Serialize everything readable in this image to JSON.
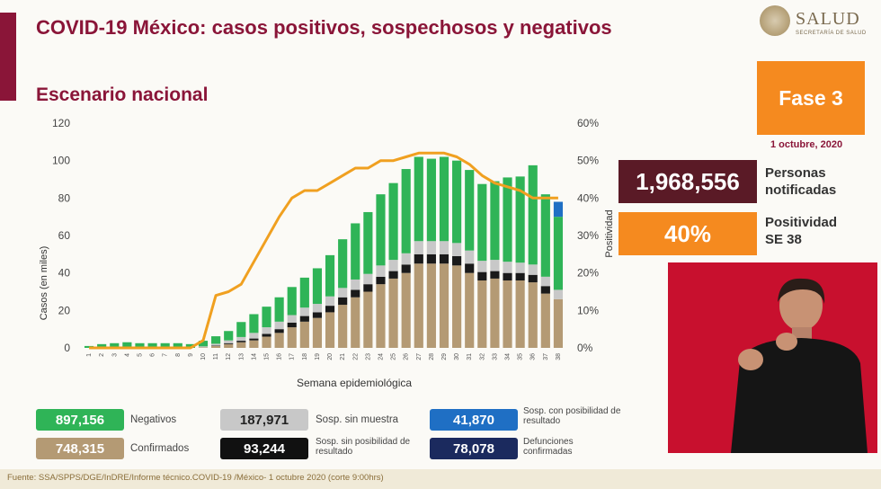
{
  "header": {
    "title": "COVID-19 México: casos positivos, sospechosos y negativos",
    "subtitle": "Escenario nacional",
    "logo_text": "SALUD",
    "logo_sub": "SECRETARÍA DE SALUD"
  },
  "side": {
    "fase": "Fase 3",
    "date": "1 octubre, 2020",
    "kpi1_value": "1,968,556",
    "kpi1_label_1": "Personas",
    "kpi1_label_2": "notificadas",
    "kpi2_value": "40%",
    "kpi2_label_1": "Positividad",
    "kpi2_label_2": "SE 38"
  },
  "legend": {
    "negativos_value": "897,156",
    "negativos_label": "Negativos",
    "confirmados_value": "748,315",
    "confirmados_label": "Confirmados",
    "sin_muestra_value": "187,971",
    "sin_muestra_label": "Sosp. sin muestra",
    "sin_posibilidad_value": "93,244",
    "sin_posibilidad_label": "Sosp. sin posibilidad de resultado",
    "con_posibilidad_value": "41,870",
    "con_posibilidad_label": "Sosp. con posibilidad de resultado",
    "defunciones_value": "78,078",
    "defunciones_label": "Defunciones confirmadas"
  },
  "footer": {
    "source": "Fuente: SSA/SPPS/DGE/InDRE/Informe técnico.COVID-19 /México- 1 octubre 2020 (corte 9:00hrs)"
  },
  "colors": {
    "confirmados": "#b49a74",
    "sin_posibilidad": "#1a1a1a",
    "sin_muestra": "#c8c8c8",
    "negativos": "#2fb457",
    "con_posibilidad": "#1f6fc4",
    "positividad": "#f0a020",
    "brand": "#8a1538",
    "accent": "#f58a1f"
  },
  "chart_data": {
    "type": "bar",
    "xlabel": "Semana epidemiológica",
    "ylabel": "Casos (en miles)",
    "y2label": "Positividad",
    "ylim": [
      0,
      120
    ],
    "y2lim": [
      0,
      60
    ],
    "yticks": [
      0,
      20,
      40,
      60,
      80,
      100,
      120
    ],
    "y2ticks": [
      "0%",
      "10%",
      "20%",
      "30%",
      "40%",
      "50%",
      "60%"
    ],
    "categories": [
      "1",
      "2",
      "3",
      "4",
      "5",
      "6",
      "7",
      "8",
      "9",
      "10",
      "11",
      "12",
      "13",
      "14",
      "15",
      "16",
      "17",
      "18",
      "19",
      "20",
      "21",
      "22",
      "23",
      "24",
      "25",
      "26",
      "27",
      "28",
      "29",
      "30",
      "31",
      "32",
      "33",
      "34",
      "35",
      "36",
      "37",
      "38"
    ],
    "series": [
      {
        "name": "Confirmados",
        "values": [
          0,
          0,
          0,
          0,
          0,
          0,
          0,
          0,
          0,
          0.3,
          1,
          2,
          3,
          4,
          6,
          8,
          11,
          14,
          16,
          19,
          23,
          27,
          30,
          34,
          37,
          40,
          45,
          45,
          45,
          44,
          40,
          36,
          37,
          36,
          36,
          35,
          29,
          26
        ]
      },
      {
        "name": "Sosp. sin posibilidad de resultado",
        "values": [
          0,
          0,
          0,
          0,
          0,
          0,
          0,
          0,
          0,
          0,
          0.2,
          0.5,
          0.8,
          1,
          1.5,
          2,
          2.5,
          3,
          3,
          3.5,
          4,
          4,
          4,
          4,
          4,
          4.5,
          5,
          5,
          5,
          5,
          5,
          4.5,
          4,
          4,
          4,
          4,
          4,
          0
        ]
      },
      {
        "name": "Sosp. sin muestra",
        "values": [
          0,
          0,
          0,
          0,
          0,
          0,
          0,
          0,
          0,
          0.5,
          1,
          1.5,
          2,
          3,
          3.5,
          4,
          4,
          4.5,
          4.5,
          5,
          5,
          5.5,
          5.5,
          6,
          6,
          6,
          7,
          7,
          7,
          7,
          7,
          6,
          6,
          6,
          5.5,
          5.5,
          5,
          5
        ]
      },
      {
        "name": "Negativos",
        "values": [
          1,
          2,
          2.5,
          3,
          2.5,
          2.5,
          2.5,
          2.5,
          2,
          3,
          4,
          5,
          8,
          10,
          11,
          13,
          15,
          16,
          19,
          22,
          26,
          30,
          33,
          38,
          41,
          45,
          45,
          44,
          45,
          44,
          43,
          41,
          42,
          45,
          46,
          53,
          44,
          39
        ]
      },
      {
        "name": "Sosp. con posibilidad de resultado",
        "values": [
          0,
          0,
          0,
          0,
          0,
          0,
          0,
          0,
          0,
          0,
          0,
          0,
          0,
          0,
          0,
          0,
          0,
          0,
          0,
          0,
          0,
          0,
          0,
          0,
          0,
          0,
          0,
          0,
          0,
          0,
          0,
          0,
          0,
          0,
          0,
          0,
          0,
          8
        ]
      }
    ],
    "positividad": [
      0,
      0,
      0,
      0,
      0,
      0,
      0,
      0,
      0,
      2,
      14,
      15,
      17,
      23,
      29,
      35,
      40,
      42,
      42,
      44,
      46,
      48,
      48,
      50,
      50,
      51,
      52,
      52,
      52,
      51,
      49,
      46,
      44,
      43,
      42,
      40,
      40,
      40
    ]
  }
}
